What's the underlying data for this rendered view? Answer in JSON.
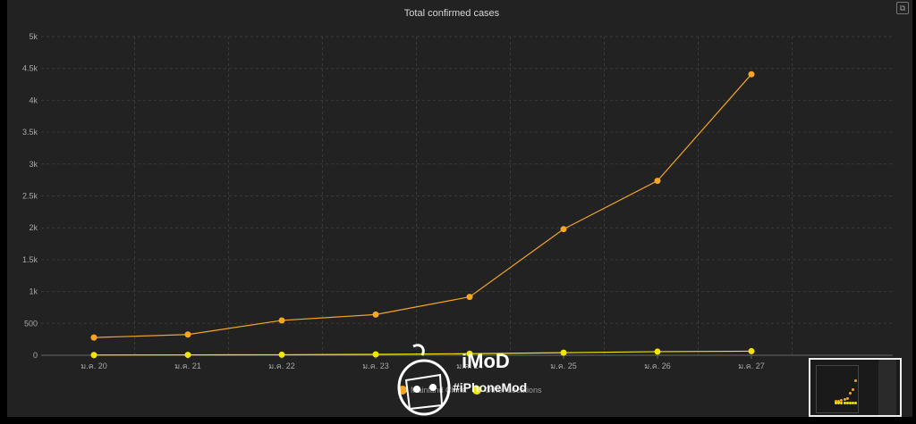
{
  "chart_data": {
    "type": "line",
    "title": "Total confirmed cases",
    "categories": [
      "ม.ค. 20",
      "ม.ค. 21",
      "ม.ค. 22",
      "ม.ค. 23",
      "ม.ค. 24",
      "ม.ค. 25",
      "ม.ค. 26",
      "ม.ค. 27"
    ],
    "y_ticks": [
      "0",
      "500",
      "1k",
      "1.5k",
      "2k",
      "2.5k",
      "3k",
      "3.5k",
      "4k",
      "4.5k",
      "5k"
    ],
    "ylim": [
      0,
      5000
    ],
    "grid": true,
    "legend_position": "bottom-center",
    "series": [
      {
        "name": "Mainland China",
        "color": "#f5a623",
        "values": [
          278,
          326,
          547,
          639,
          916,
          1979,
          2737,
          4409
        ]
      },
      {
        "name": "Other Locations",
        "color": "#f2e600",
        "values": [
          4,
          6,
          8,
          14,
          25,
          40,
          57,
          64
        ]
      }
    ]
  },
  "watermark": {
    "logo": "iMoD",
    "tag": "#iPhoneMod"
  },
  "colors": {
    "background": "#222222",
    "grid": "#3a3a3a",
    "axis": "#666666"
  }
}
